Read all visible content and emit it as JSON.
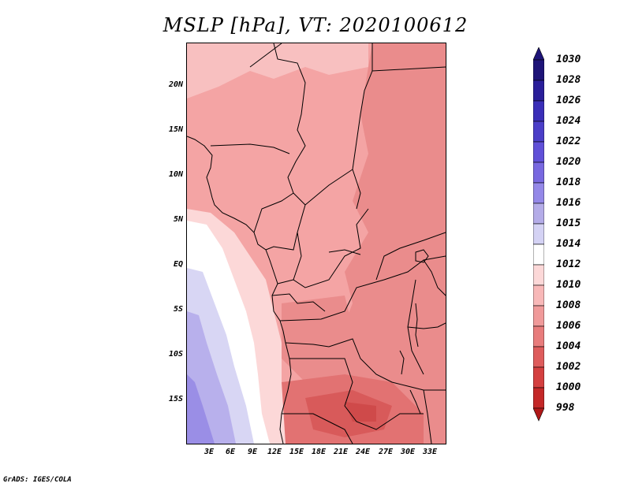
{
  "title": "MSLP [hPa], VT: 2020100612",
  "credit": "GrADS: IGES/COLA",
  "lat_labels": [
    "20N",
    "15N",
    "10N",
    "5N",
    "EQ",
    "5S",
    "10S",
    "15S"
  ],
  "lon_labels": [
    "3E",
    "6E",
    "9E",
    "12E",
    "15E",
    "18E",
    "21E",
    "24E",
    "27E",
    "30E",
    "33E"
  ],
  "colorbar": {
    "levels": [
      "1030",
      "1028",
      "1026",
      "1024",
      "1022",
      "1020",
      "1018",
      "1016",
      "1015",
      "1014",
      "1012",
      "1010",
      "1008",
      "1006",
      "1004",
      "1002",
      "1000",
      "998"
    ],
    "colors": [
      "#1e1478",
      "#2a1e9a",
      "#3a2eb8",
      "#4b3ec8",
      "#6050d8",
      "#7868e0",
      "#9488e8",
      "#b4ace8",
      "#d4d2f4",
      "#ffffff",
      "#fcd8d8",
      "#f8b8b8",
      "#f09a9a",
      "#e87c7c",
      "#de5c5c",
      "#d44040",
      "#c42828",
      "#b01818"
    ]
  }
}
